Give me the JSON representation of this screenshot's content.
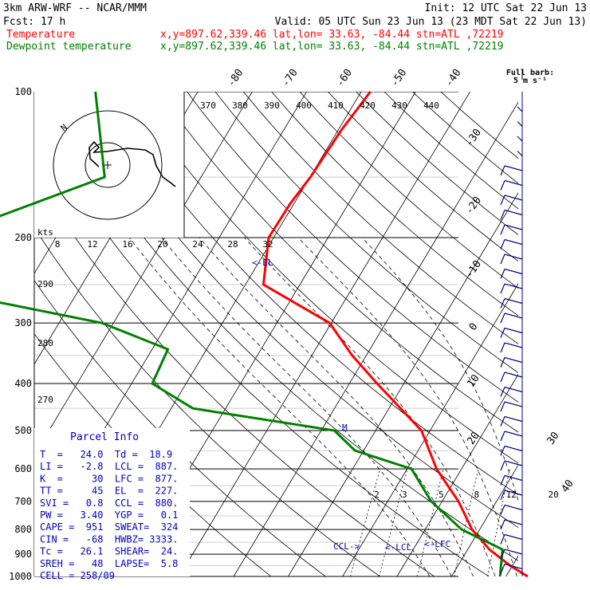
{
  "header": {
    "line1_left": "3km ARW-WRF -- NCAR/MMM",
    "line1_right": "Init: 12 UTC Sat 22 Jun 13",
    "line2_left": "Fcst:    17 h",
    "line2_right": "Valid: 05 UTC Sun 23 Jun 13 (23 MDT Sat 22 Jun 13)",
    "temp_label": "Temperature",
    "temp_info": "x,y=897.62,339.46   lat,lon= 33.63, -84.44   stn=ATL ,72219",
    "dew_label": "Dewpoint temperature",
    "dew_info": "x,y=897.62,339.46   lat,lon= 33.63, -84.44   stn=ATL ,72219",
    "barb_title": "Full barb:",
    "barb_unit": "5 m s⁻¹"
  },
  "colors": {
    "temperature": "#ff0000",
    "dewpoint": "#008000",
    "annotation": "#0000c0",
    "barb": "#000080"
  },
  "parcel_info": {
    "title": "Parcel Info",
    "rows": [
      "T  =   24.0  Td =  18.9",
      "LI =   -2.8  LCL =  887.",
      "K  =     30  LFC =  877.",
      "TT =     45  EL  =  227.",
      "SVI =   0.8  CCL =  880.",
      "PW =   3.40  YGP =   0.1",
      "CAPE =  951  SWEAT=  324",
      "CIN =   -68  HWBZ= 3333.",
      "Tc =   26.1  SHEAR=  24.",
      "SREH =   48  LAPSE=  5.8",
      "CELL = 258/09"
    ]
  },
  "annotations": {
    "el": "<-EL",
    "lcl": "<-LCL",
    "lfc": "<-LFC",
    "ccl": "CCL->",
    "m": "M"
  },
  "hodograph": {
    "theta_labels": [
      "370",
      "380",
      "390",
      "400",
      "410",
      "420",
      "430",
      "440"
    ],
    "kts_label": "kts",
    "speed_labels": [
      "8",
      "12",
      "16",
      "20",
      "24",
      "28",
      "32"
    ],
    "ring_label": "N"
  },
  "chart_data": {
    "type": "line",
    "title": "",
    "ylabel": "",
    "pressure_levels": [
      100,
      200,
      300,
      400,
      500,
      600,
      700,
      800,
      900,
      1000
    ],
    "pressure_tick_labels": [
      "100",
      "200",
      "300",
      "400",
      "500",
      "600",
      "700",
      "800",
      "900",
      "1000"
    ],
    "isotherm_labels_top": [
      "-80",
      "-70",
      "-60",
      "-50",
      "-40"
    ],
    "isotherm_labels_right": [
      "-30",
      "-20",
      "-10",
      "0",
      "10",
      "20",
      "30",
      "40"
    ],
    "isotherm_values_top": [
      -80,
      -70,
      -60,
      -50,
      -40
    ],
    "isotherm_values_right": [
      -30,
      -20,
      -10,
      0,
      10,
      20,
      30,
      40
    ],
    "isotherm_values": [
      -140,
      -130,
      -120,
      -110,
      -100,
      -90,
      -80,
      -70,
      -60,
      -50,
      -40,
      -30,
      -20,
      -10,
      0,
      10,
      20,
      30,
      40
    ],
    "mixing_ratio_labels": [
      "2",
      "3",
      "5",
      "8",
      "12",
      "20"
    ],
    "mixing_ratio_values": [
      2,
      3,
      5,
      8,
      12,
      20
    ],
    "dry_adiabat_labels": [
      "290",
      "280",
      "270"
    ],
    "dry_adiabat_label_values": [
      290,
      280,
      270
    ],
    "dry_adiabat_values": [
      250,
      260,
      270,
      280,
      290,
      300,
      310,
      320,
      330,
      340,
      350,
      360,
      370,
      380,
      390,
      400,
      410,
      420,
      430,
      440
    ],
    "moist_adiabat_values": [
      6,
      10,
      14,
      18,
      22,
      26
    ],
    "wind_barb_count": 32,
    "series": [
      {
        "name": "Temperature",
        "points": [
          [
            -58.3,
            100
          ],
          [
            -59.4,
            120
          ],
          [
            -59.9,
            150
          ],
          [
            -60.7,
            170
          ],
          [
            -60.9,
            200
          ],
          [
            -56.7,
            250
          ],
          [
            -40.3,
            300
          ],
          [
            -32.6,
            350
          ],
          [
            -24.9,
            400
          ],
          [
            -11.6,
            500
          ],
          [
            -4.6,
            600
          ],
          [
            3.0,
            700
          ],
          [
            8.6,
            800
          ],
          [
            14.0,
            880
          ],
          [
            19.6,
            950
          ],
          [
            24.0,
            1000
          ]
        ]
      },
      {
        "name": "Dewpoint temperature",
        "points": [
          [
            -108.8,
            100
          ],
          [
            -97.7,
            150
          ],
          [
            -120.9,
            200
          ],
          [
            -121.6,
            250
          ],
          [
            -82.1,
            300
          ],
          [
            -67.1,
            340
          ],
          [
            -66.2,
            400
          ],
          [
            -56.0,
            450
          ],
          [
            -27.6,
            500
          ],
          [
            -21.6,
            550
          ],
          [
            -9.2,
            600
          ],
          [
            -2.0,
            700
          ],
          [
            6.7,
            800
          ],
          [
            16.4,
            880
          ],
          [
            18.9,
            1000
          ]
        ]
      }
    ]
  }
}
